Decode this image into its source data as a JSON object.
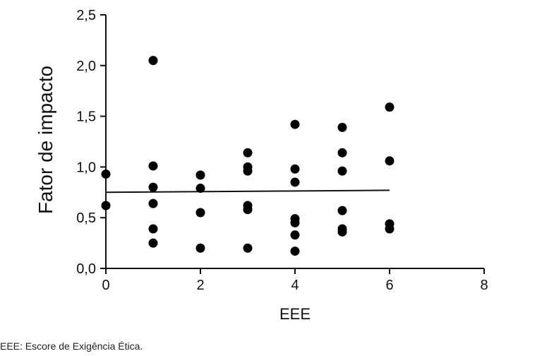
{
  "chart_data": {
    "type": "scatter",
    "xlabel": "EEE",
    "ylabel": "Fator de impacto",
    "xlim": [
      0,
      8
    ],
    "ylim": [
      0,
      2.5
    ],
    "x_ticks": [
      "0",
      "2",
      "4",
      "6",
      "8"
    ],
    "y_ticks": [
      "0,0",
      "0,5",
      "1,0",
      "1,5",
      "2,0",
      "2,5"
    ],
    "x_tick_values": [
      0,
      2,
      4,
      6,
      8
    ],
    "y_tick_values": [
      0,
      0.5,
      1.0,
      1.5,
      2.0,
      2.5
    ],
    "grid": false,
    "points": [
      {
        "x": 0,
        "y": 0.93
      },
      {
        "x": 0,
        "y": 0.62
      },
      {
        "x": 1,
        "y": 2.05
      },
      {
        "x": 1,
        "y": 1.01
      },
      {
        "x": 1,
        "y": 0.8
      },
      {
        "x": 1,
        "y": 0.64
      },
      {
        "x": 1,
        "y": 0.39
      },
      {
        "x": 1,
        "y": 0.25
      },
      {
        "x": 2,
        "y": 0.92
      },
      {
        "x": 2,
        "y": 0.79
      },
      {
        "x": 2,
        "y": 0.55
      },
      {
        "x": 2,
        "y": 0.2
      },
      {
        "x": 3,
        "y": 1.14
      },
      {
        "x": 3,
        "y": 1.0
      },
      {
        "x": 3,
        "y": 0.96
      },
      {
        "x": 3,
        "y": 0.62
      },
      {
        "x": 3,
        "y": 0.58
      },
      {
        "x": 3,
        "y": 0.2
      },
      {
        "x": 4,
        "y": 1.42
      },
      {
        "x": 4,
        "y": 0.98
      },
      {
        "x": 4,
        "y": 0.85
      },
      {
        "x": 4,
        "y": 0.49
      },
      {
        "x": 4,
        "y": 0.45
      },
      {
        "x": 4,
        "y": 0.33
      },
      {
        "x": 4,
        "y": 0.17
      },
      {
        "x": 5,
        "y": 1.39
      },
      {
        "x": 5,
        "y": 1.14
      },
      {
        "x": 5,
        "y": 0.96
      },
      {
        "x": 5,
        "y": 0.57
      },
      {
        "x": 5,
        "y": 0.39
      },
      {
        "x": 5,
        "y": 0.36
      },
      {
        "x": 6,
        "y": 1.59
      },
      {
        "x": 6,
        "y": 1.06
      },
      {
        "x": 6,
        "y": 0.44
      },
      {
        "x": 6,
        "y": 0.39
      }
    ],
    "trendline": {
      "x": [
        0,
        6
      ],
      "y": [
        0.75,
        0.77
      ]
    }
  },
  "caption": "EEE: Escore de Exigência Ética."
}
